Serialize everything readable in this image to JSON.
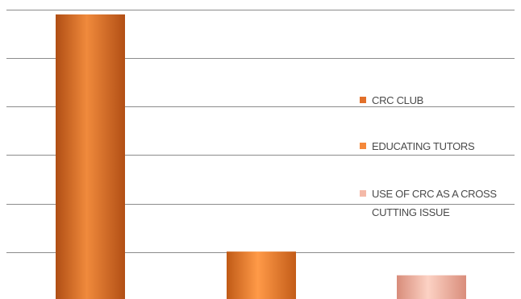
{
  "chart_data": {
    "type": "bar",
    "categories": [
      "CRC CLUB",
      "EDUCATING TUTORS",
      "USE OF CRC AS A CROSS CUTTING ISSUE"
    ],
    "values": [
      60,
      10,
      5
    ],
    "ylim": [
      0,
      61
    ],
    "grid": true,
    "legend_position": "right",
    "series_colors": [
      "#e2702a",
      "#f5883a",
      "#f4b9a8"
    ],
    "legend": [
      {
        "label_lines": [
          "CRC CLUB"
        ]
      },
      {
        "label_lines": [
          "EDUCATING TUTORS"
        ]
      },
      {
        "label_lines": [
          "USE OF CRC AS A CROSS",
          "CUTTING ISSUE"
        ]
      }
    ]
  }
}
